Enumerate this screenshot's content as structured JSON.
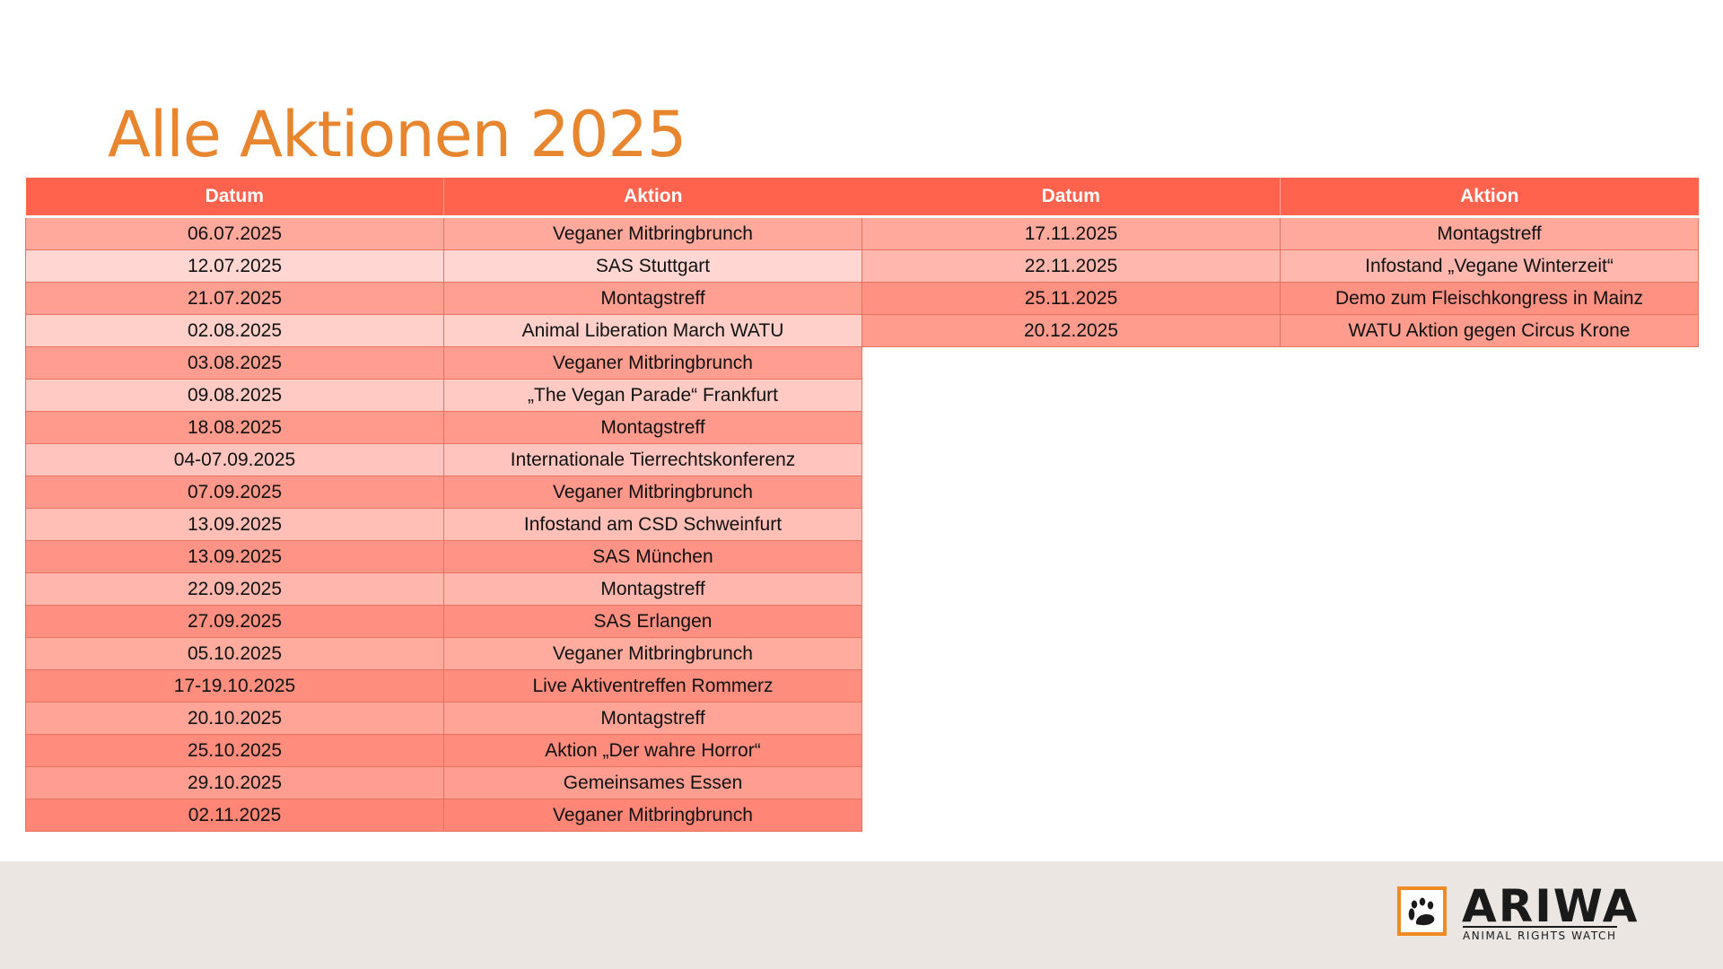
{
  "title": "Alle Aktionen 2025",
  "colors": {
    "title": "#E8852F",
    "header": "#FF634D",
    "row_palette": [
      "#FFA99D",
      "#FFD6D2",
      "#FF978A",
      "#FFC6BF",
      "#FF8A7C"
    ],
    "footer": "#EBE6E2",
    "logo_accent": "#F08A25"
  },
  "table_left": {
    "headers": [
      "Datum",
      "Aktion"
    ],
    "rows": [
      [
        "06.07.2025",
        "Veganer Mitbringbrunch"
      ],
      [
        "12.07.2025",
        "SAS Stuttgart"
      ],
      [
        "21.07.2025",
        "Montagstreff"
      ],
      [
        "02.08.2025",
        "Animal Liberation March WATU"
      ],
      [
        "03.08.2025",
        "Veganer Mitbringbrunch"
      ],
      [
        "09.08.2025",
        "„The Vegan Parade“ Frankfurt"
      ],
      [
        "18.08.2025",
        "Montagstreff"
      ],
      [
        "04-07.09.2025",
        "Internationale Tierrechtskonferenz"
      ],
      [
        "07.09.2025",
        "Veganer Mitbringbrunch"
      ],
      [
        "13.09.2025",
        "Infostand am CSD Schweinfurt"
      ],
      [
        "13.09.2025",
        "SAS München"
      ],
      [
        "22.09.2025",
        "Montagstreff"
      ],
      [
        "27.09.2025",
        "SAS Erlangen"
      ],
      [
        "05.10.2025",
        "Veganer Mitbringbrunch"
      ],
      [
        "17-19.10.2025",
        "Live Aktiventreffen Rommerz"
      ],
      [
        "20.10.2025",
        "Montagstreff"
      ],
      [
        "25.10.2025",
        "Aktion „Der wahre Horror“"
      ],
      [
        "29.10.2025",
        "Gemeinsames Essen"
      ],
      [
        "02.11.2025",
        "Veganer Mitbringbrunch"
      ]
    ],
    "row_colors": [
      "#FFA99D",
      "#FFD6D2",
      "#FF9F92",
      "#FFD0CA",
      "#FF9E90",
      "#FFCAC3",
      "#FF9A8C",
      "#FFC4BD",
      "#FF988A",
      "#FFBFB7",
      "#FF9385",
      "#FFB6AD",
      "#FF9081",
      "#FFAC9F",
      "#FF8E7F",
      "#FFA497",
      "#FF8C7D",
      "#FF9E90",
      "#FF8677"
    ]
  },
  "table_right": {
    "headers": [
      "Datum",
      "Aktion"
    ],
    "rows": [
      [
        "17.11.2025",
        "Montagstreff"
      ],
      [
        "22.11.2025",
        "Infostand „Vegane Winterzeit“"
      ],
      [
        "25.11.2025",
        "Demo zum Fleischkongress in Mainz"
      ],
      [
        "20.12.2025",
        "WATU Aktion gegen Circus Krone"
      ]
    ],
    "row_colors": [
      "#FFA99D",
      "#FFB7AE",
      "#FF9182",
      "#FF9C8E"
    ]
  },
  "logo": {
    "name": "ARIWA",
    "tagline": "ANIMAL RIGHTS WATCH",
    "icon": "paw-print-icon"
  }
}
